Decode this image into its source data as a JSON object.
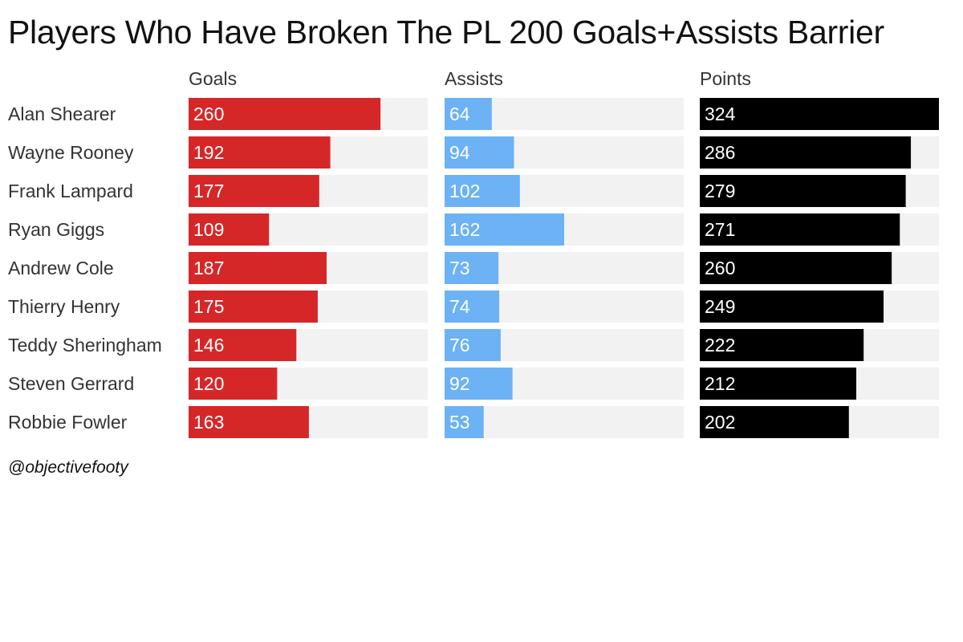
{
  "chart_data": {
    "type": "bar",
    "title": "Players Who Have Broken The PL 200 Goals+Assists Barrier",
    "categories": [
      "Alan Shearer",
      "Wayne Rooney",
      "Frank Lampard",
      "Ryan Giggs",
      "Andrew Cole",
      "Thierry Henry",
      "Teddy Sheringham",
      "Steven Gerrard",
      "Robbie Fowler"
    ],
    "series": [
      {
        "name": "Goals",
        "color": "#d62728",
        "values": [
          260,
          192,
          177,
          109,
          187,
          175,
          146,
          120,
          163
        ]
      },
      {
        "name": "Assists",
        "color": "#6cb2f5",
        "values": [
          64,
          94,
          102,
          162,
          73,
          74,
          76,
          92,
          53
        ]
      },
      {
        "name": "Points",
        "color": "#000000",
        "values": [
          324,
          286,
          279,
          271,
          260,
          249,
          222,
          212,
          202
        ]
      }
    ],
    "xlim": [
      0,
      324
    ],
    "track_color": "#f2f2f2",
    "grid": false,
    "legend": "none"
  },
  "source_credit": "@objectivefooty"
}
